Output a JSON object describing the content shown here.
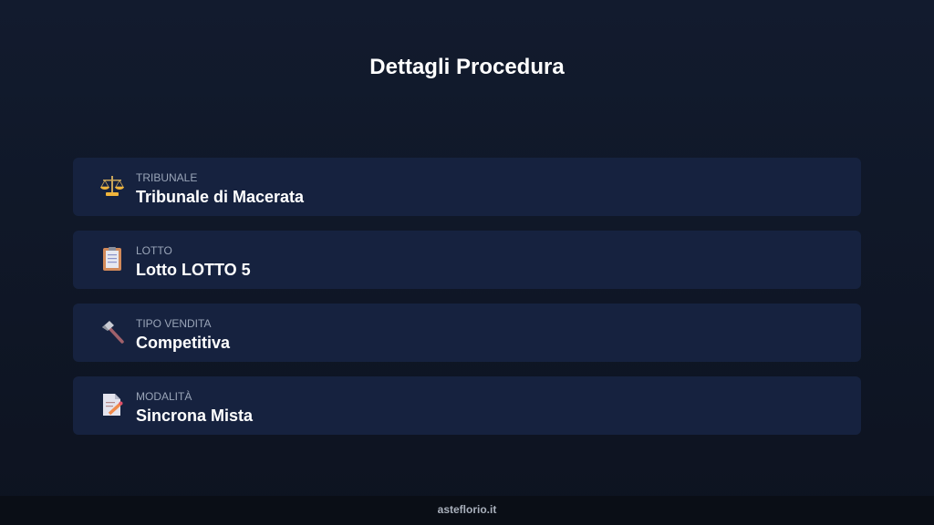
{
  "page": {
    "title": "Dettagli Procedura"
  },
  "items": [
    {
      "icon": "scales-icon",
      "label": "TRIBUNALE",
      "value": "Tribunale di Macerata"
    },
    {
      "icon": "clipboard-icon",
      "label": "LOTTO",
      "value": "Lotto LOTTO 5"
    },
    {
      "icon": "hammer-icon",
      "label": "TIPO VENDITA",
      "value": "Competitiva"
    },
    {
      "icon": "memo-icon",
      "label": "MODALITÀ",
      "value": "Sincrona Mista"
    }
  ],
  "footer": {
    "text": "asteflorio.it"
  }
}
